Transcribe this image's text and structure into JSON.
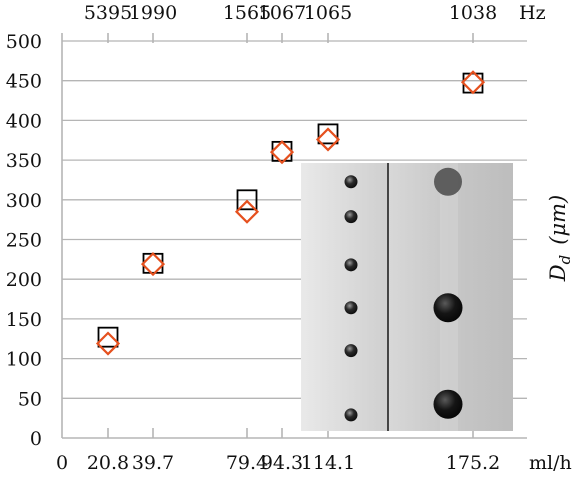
{
  "chart_data": {
    "type": "scatter",
    "title": "",
    "ylabel": "D_d (μm)",
    "ylabel_parts": {
      "symbol": "D",
      "subscript": "d",
      "unit": "(μm)"
    },
    "xlabel_unit": "ml/h",
    "top_axis_unit": "Hz",
    "ylim": [
      0,
      500
    ],
    "yticks": [
      0,
      50,
      100,
      150,
      200,
      250,
      300,
      350,
      400,
      450,
      500
    ],
    "xlim": [
      0,
      210
    ],
    "xticks": [
      {
        "value": 0,
        "label": "0"
      },
      {
        "value": 20.8,
        "label": "20.8"
      },
      {
        "value": 39.7,
        "label": "39.7"
      },
      {
        "value": 79.4,
        "label": "79.4"
      },
      {
        "value": 94.3,
        "label": "94.3"
      },
      {
        "value": 114.1,
        "label": "114.1"
      },
      {
        "value": 175.2,
        "label": "175.2"
      }
    ],
    "top_ticks": [
      {
        "value": 20.8,
        "label": "5395"
      },
      {
        "value": 39.7,
        "label": "1990"
      },
      {
        "value": 79.4,
        "label": "1565"
      },
      {
        "value": 94.3,
        "label": "1067"
      },
      {
        "value": 114.1,
        "label": "1065"
      },
      {
        "value": 175.2,
        "label": "1038"
      }
    ],
    "grid": true,
    "series": [
      {
        "marker": "square",
        "color": "#000000",
        "points": [
          {
            "x": 20.8,
            "y": 127
          },
          {
            "x": 39.7,
            "y": 220
          },
          {
            "x": 79.4,
            "y": 300
          },
          {
            "x": 94.3,
            "y": 361
          },
          {
            "x": 114.1,
            "y": 383
          },
          {
            "x": 175.2,
            "y": 447
          }
        ]
      },
      {
        "marker": "diamond",
        "color": "#e5501e",
        "points": [
          {
            "x": 20.8,
            "y": 119
          },
          {
            "x": 39.7,
            "y": 219
          },
          {
            "x": 79.4,
            "y": 285
          },
          {
            "x": 94.3,
            "y": 360
          },
          {
            "x": 114.1,
            "y": 376
          },
          {
            "x": 175.2,
            "y": 448
          }
        ]
      }
    ],
    "inset": {
      "description_free": true,
      "left_panel_drops": [
        0.07,
        0.2,
        0.38,
        0.54,
        0.7,
        0.94
      ],
      "right_panel_drops": [
        0.07,
        0.54,
        0.9
      ]
    }
  }
}
